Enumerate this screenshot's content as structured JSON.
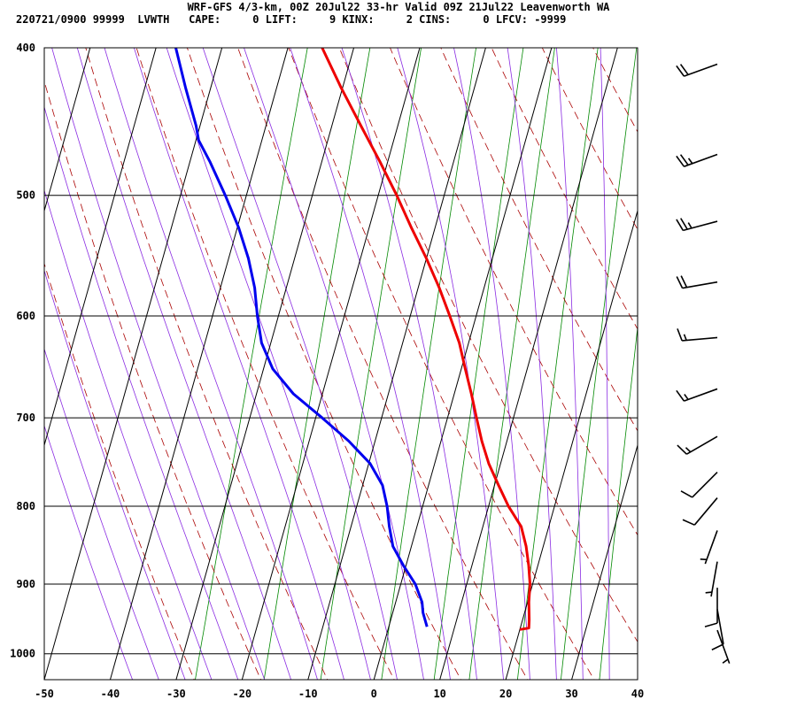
{
  "header": {
    "line1": "WRF-GFS 4/3-km, 00Z 20Jul22 33-hr Valid 09Z 21Jul22 Leavenworth WA",
    "line2": "220721/0900 99999  LVWTH   CAPE:     0 LIFT:     9 KINX:     2 CINS:     0 LFCV: -9999"
  },
  "chart_data": {
    "type": "skew-t log-p sounding",
    "x_axis": {
      "unit": "deg C",
      "range": [
        -50,
        40
      ],
      "ticks": [
        -50,
        -40,
        -30,
        -20,
        -10,
        0,
        10,
        20,
        30,
        40
      ]
    },
    "y_axis": {
      "unit": "hPa",
      "scale": "log",
      "range": [
        1040,
        400
      ],
      "ticks": [
        400,
        500,
        600,
        700,
        800,
        900,
        1000
      ]
    },
    "series": [
      {
        "color": "#ee0000",
        "points": [
          {
            "p": 964,
            "t": 20.0
          },
          {
            "p": 962,
            "t": 21.3
          },
          {
            "p": 950,
            "t": 21.0
          },
          {
            "p": 925,
            "t": 20.2
          },
          {
            "p": 900,
            "t": 19.6
          },
          {
            "p": 875,
            "t": 18.6
          },
          {
            "p": 850,
            "t": 17.4
          },
          {
            "p": 825,
            "t": 15.8
          },
          {
            "p": 800,
            "t": 13.0
          },
          {
            "p": 775,
            "t": 10.6
          },
          {
            "p": 750,
            "t": 8.2
          },
          {
            "p": 725,
            "t": 6.2
          },
          {
            "p": 700,
            "t": 4.4
          },
          {
            "p": 675,
            "t": 2.6
          },
          {
            "p": 650,
            "t": 0.6
          },
          {
            "p": 625,
            "t": -1.4
          },
          {
            "p": 600,
            "t": -4.0
          },
          {
            "p": 575,
            "t": -6.8
          },
          {
            "p": 550,
            "t": -10.0
          },
          {
            "p": 525,
            "t": -13.6
          },
          {
            "p": 500,
            "t": -17.2
          },
          {
            "p": 475,
            "t": -21.2
          },
          {
            "p": 450,
            "t": -25.6
          },
          {
            "p": 425,
            "t": -30.2
          },
          {
            "p": 400,
            "t": -34.8
          }
        ]
      },
      {
        "color": "#0000ee",
        "points": [
          {
            "p": 960,
            "t": 5.8
          },
          {
            "p": 940,
            "t": 4.6
          },
          {
            "p": 925,
            "t": 4.0
          },
          {
            "p": 900,
            "t": 2.2
          },
          {
            "p": 875,
            "t": -0.4
          },
          {
            "p": 850,
            "t": -2.8
          },
          {
            "p": 825,
            "t": -4.2
          },
          {
            "p": 800,
            "t": -5.4
          },
          {
            "p": 775,
            "t": -7.0
          },
          {
            "p": 750,
            "t": -9.8
          },
          {
            "p": 725,
            "t": -14.0
          },
          {
            "p": 700,
            "t": -19.0
          },
          {
            "p": 675,
            "t": -24.4
          },
          {
            "p": 650,
            "t": -28.6
          },
          {
            "p": 625,
            "t": -31.4
          },
          {
            "p": 600,
            "t": -33.2
          },
          {
            "p": 575,
            "t": -34.8
          },
          {
            "p": 550,
            "t": -37.0
          },
          {
            "p": 525,
            "t": -39.8
          },
          {
            "p": 500,
            "t": -43.2
          },
          {
            "p": 475,
            "t": -47.0
          },
          {
            "p": 460,
            "t": -49.6
          },
          {
            "p": 450,
            "t": -50.6
          },
          {
            "p": 425,
            "t": -53.8
          },
          {
            "p": 400,
            "t": -57.0
          }
        ]
      }
    ],
    "wind_barbs": [
      {
        "p": 410,
        "dir": 250,
        "kt": 20
      },
      {
        "p": 470,
        "dir": 250,
        "kt": 25
      },
      {
        "p": 520,
        "dir": 255,
        "kt": 25
      },
      {
        "p": 570,
        "dir": 260,
        "kt": 20
      },
      {
        "p": 620,
        "dir": 265,
        "kt": 15
      },
      {
        "p": 670,
        "dir": 250,
        "kt": 15
      },
      {
        "p": 720,
        "dir": 240,
        "kt": 15
      },
      {
        "p": 760,
        "dir": 225,
        "kt": 10
      },
      {
        "p": 790,
        "dir": 220,
        "kt": 10
      },
      {
        "p": 830,
        "dir": 200,
        "kt": 5
      },
      {
        "p": 870,
        "dir": 190,
        "kt": 5
      },
      {
        "p": 905,
        "dir": 180,
        "kt": 10
      },
      {
        "p": 935,
        "dir": 170,
        "kt": 10
      },
      {
        "p": 965,
        "dir": 160,
        "kt": 5
      }
    ],
    "colors": {
      "isotherm": "#000000",
      "isobar": "#000000",
      "dry_adiabat": "#aa0000",
      "moist_adiabat": "#8a2be2",
      "mixing_ratio": "#008800"
    }
  }
}
